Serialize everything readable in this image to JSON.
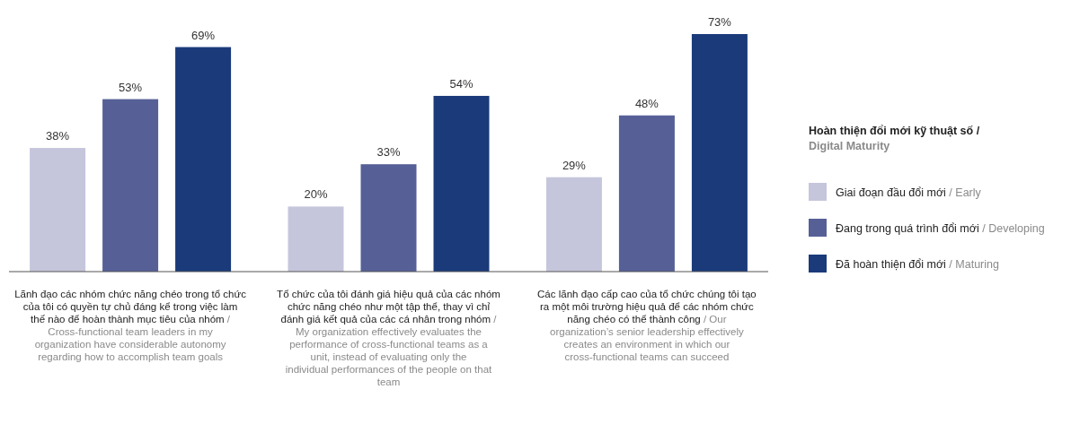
{
  "chart_data": {
    "type": "bar",
    "legend_title": "Hoàn thiện đổi mới kỹ thuật số / Digital Maturity",
    "categories": [
      "Lãnh đạo các nhóm chức năng chéo trong tổ chức của tôi có quyền tự chủ đáng kể trong việc làm thế nào để hoàn thành mục tiêu của nhóm / Cross-functional team leaders in my organization have considerable autonomy regarding how to accomplish team goals",
      "Tổ chức của tôi đánh giá hiệu quả của các nhóm chức năng chéo như một tập thể, thay vì chỉ đánh giá kết quả của các cá nhân trong nhóm / My organization effectively evaluates the performance of cross-functional teams as a unit, instead of evaluating only the individual performances of the people on that team",
      "Các lãnh đạo cấp cao của tổ chức chúng tôi tạo ra một môi trường hiệu quả để các nhóm chức năng chéo có thể thành công / Our organization’s senior leadership effectively creates an environment in which our cross-functional teams can succeed"
    ],
    "series": [
      {
        "name": "Giai đoạn đầu đổi mới / Early",
        "color": "#c5c6dc",
        "values": [
          38,
          20,
          29
        ],
        "value_labels": [
          "38%",
          "20%",
          "29%"
        ]
      },
      {
        "name": "Đang trong quá trình đổi mới / Developing",
        "color": "#566097",
        "values": [
          53,
          33,
          48
        ],
        "value_labels": [
          "53%",
          "33%",
          "48%"
        ]
      },
      {
        "name": "Đã hoàn thiện đổi mới / Maturing",
        "color": "#1a3a7a",
        "values": [
          69,
          54,
          73
        ],
        "value_labels": [
          "69%",
          "54%",
          "73%"
        ]
      }
    ],
    "legend": "right"
  }
}
